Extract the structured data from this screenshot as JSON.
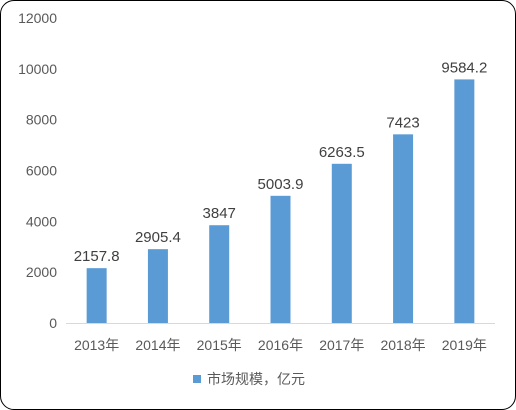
{
  "chart_data": {
    "type": "bar",
    "categories": [
      "2013年",
      "2014年",
      "2015年",
      "2016年",
      "2017年",
      "2018年",
      "2019年"
    ],
    "series": [
      {
        "name": "市场规模，亿元",
        "values": [
          2157.8,
          2905.4,
          3847,
          5003.9,
          6263.5,
          7423,
          9584.2
        ],
        "value_labels": [
          "2157.8",
          "2905.4",
          "3847",
          "5003.9",
          "6263.5",
          "7423",
          "9584.2"
        ],
        "color": "#5B9BD5"
      }
    ],
    "ylim": [
      0,
      12000
    ],
    "yticks": [
      0,
      2000,
      4000,
      6000,
      8000,
      10000,
      12000
    ],
    "grid": false,
    "legend_position": "bottom"
  }
}
